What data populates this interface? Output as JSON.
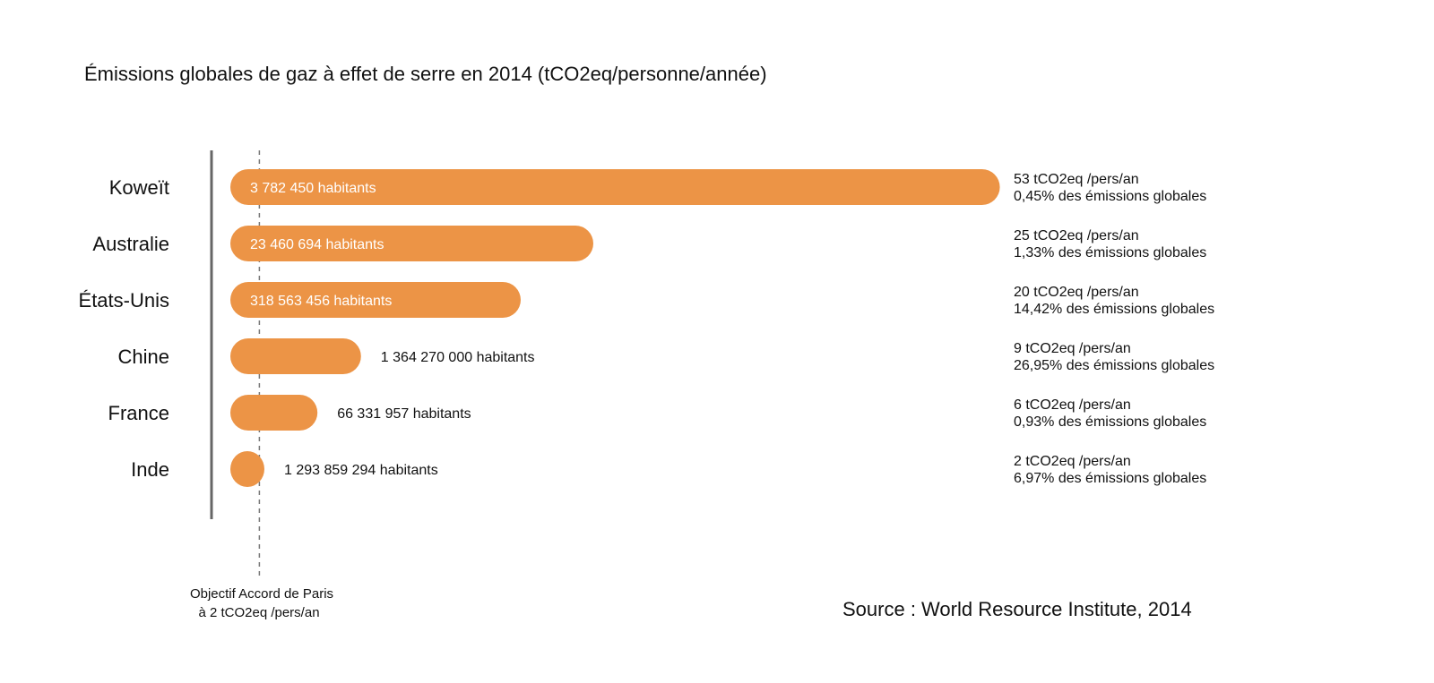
{
  "chart_data": {
    "type": "bar",
    "orientation": "horizontal",
    "title": "Émissions globales de gaz à effet de serre en 2014 (tCO2eq/personne/année)",
    "categories": [
      "Koweït",
      "Australie",
      "États-Unis",
      "Chine",
      "France",
      "Inde"
    ],
    "values": [
      53,
      25,
      20,
      9,
      6,
      2
    ],
    "unit": "tCO2eq /pers/an",
    "xlim": [
      0,
      53
    ],
    "population_labels": [
      "3 782 450 habitants",
      "23 460 694 habitants",
      "318 563 456 habitants",
      "1 364 270 000 habitants",
      "66 331 957 habitants",
      "1 293 859 294 habitants"
    ],
    "emission_labels": [
      "53 tCO2eq /pers/an",
      "25 tCO2eq /pers/an",
      "20 tCO2eq /pers/an",
      "9 tCO2eq /pers/an",
      "6 tCO2eq /pers/an",
      "2 tCO2eq /pers/an"
    ],
    "share_labels": [
      "0,45% des émissions globales",
      "1,33% des émissions globales",
      "14,42% des émissions globales",
      "26,95% des émissions globales",
      "0,93% des émissions globales",
      "6,97% des émissions globales"
    ],
    "reference_line": {
      "value": 2,
      "label_lines": [
        "Objectif Accord de Paris",
        "à 2 tCO2eq /pers/an"
      ]
    },
    "bar_color": "#EC9446",
    "axis_color": "#666666",
    "grid": false
  },
  "source": "Source :  World Resource Institute, 2014"
}
